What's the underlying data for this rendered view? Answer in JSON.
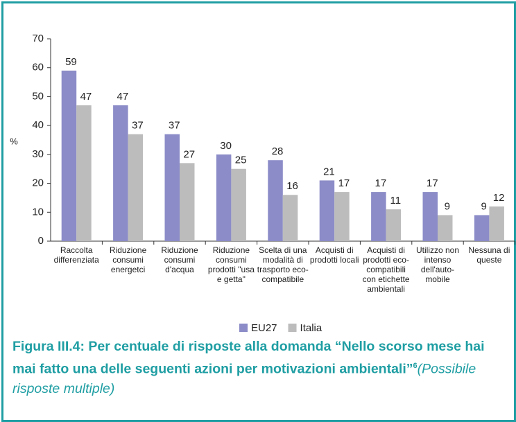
{
  "chart_data": {
    "type": "bar",
    "title": "Figura III.4: Per centuale di risposte alla domanda “Nello scorso mese hai mai fatto una delle seguenti azioni per motivazioni ambientali”",
    "footnote_mark": "6",
    "subtitle": "(Possibile risposte multiple)",
    "y_label": "%",
    "categories": [
      "Raccolta differenziata",
      "Riduzione consumi energetci",
      "Riduzione consumi d'acqua",
      "Riduzione consumi prodotti \"usa e getta\"",
      "Scelta di una modalità di trasporto eco-compatibile",
      "Acquisti di prodotti locali",
      "Acquisti di prodotti eco-compatibili con etichette ambientali",
      "Utilizzo non intenso dell'auto-mobile",
      "Nessuna di queste"
    ],
    "series": [
      {
        "name": "EU27",
        "color": "#8c8cc8",
        "values": [
          59,
          47,
          37,
          30,
          28,
          21,
          17,
          17,
          9
        ]
      },
      {
        "name": "Italia",
        "color": "#bcbcbc",
        "values": [
          47,
          37,
          27,
          25,
          16,
          17,
          11,
          9,
          12
        ]
      }
    ],
    "ylim": [
      0,
      70
    ],
    "yticks": [
      0,
      10,
      20,
      30,
      40,
      50,
      60,
      70
    ]
  }
}
